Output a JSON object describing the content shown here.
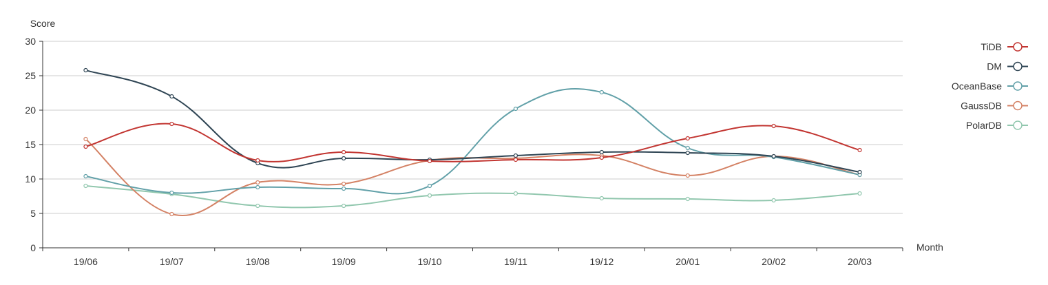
{
  "chart_data": {
    "type": "line",
    "ylabel": "Score",
    "xlabel": "Month",
    "ylim": [
      0,
      30
    ],
    "yticks": [
      0,
      5,
      10,
      15,
      20,
      25,
      30
    ],
    "categories": [
      "19/06",
      "19/07",
      "19/08",
      "19/09",
      "19/10",
      "19/11",
      "19/12",
      "20/01",
      "20/02",
      "20/03"
    ],
    "grid": true,
    "smooth": true,
    "legend_position": "top-right",
    "series": [
      {
        "name": "TiDB",
        "color": "#c23531",
        "values": [
          14.7,
          18.0,
          12.7,
          13.9,
          12.6,
          12.8,
          13.1,
          15.9,
          17.7,
          14.2
        ]
      },
      {
        "name": "DM",
        "color": "#2f4554",
        "values": [
          25.8,
          22.0,
          12.3,
          13.0,
          12.8,
          13.4,
          13.9,
          13.8,
          13.3,
          11.0
        ]
      },
      {
        "name": "OceanBase",
        "color": "#61a0a8",
        "values": [
          10.4,
          8.0,
          8.8,
          8.6,
          9.0,
          20.2,
          22.6,
          14.5,
          13.2,
          10.6
        ]
      },
      {
        "name": "GaussDB",
        "color": "#d48265",
        "values": [
          15.8,
          4.9,
          9.5,
          9.3,
          12.7,
          13.0,
          13.4,
          10.5,
          13.3,
          10.6
        ]
      },
      {
        "name": "PolarDB",
        "color": "#91c7ae",
        "values": [
          9.0,
          7.8,
          6.1,
          6.1,
          7.6,
          7.9,
          7.2,
          7.1,
          6.9,
          7.9
        ]
      }
    ]
  }
}
